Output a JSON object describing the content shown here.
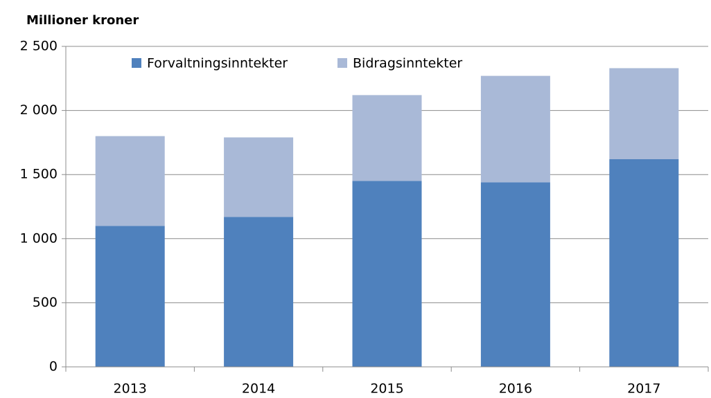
{
  "chart_data": {
    "type": "stacked_bar",
    "title": "Millioner kroner",
    "categories": [
      "2013",
      "2014",
      "2015",
      "2016",
      "2017"
    ],
    "series": [
      {
        "name": "Forvaltningsinntekter",
        "color": "#4f81bd",
        "values": [
          1100,
          1170,
          1450,
          1440,
          1620
        ]
      },
      {
        "name": "Bidragsinntekter",
        "color": "#a9b9d7",
        "values": [
          700,
          620,
          670,
          830,
          710
        ]
      }
    ],
    "ylim": [
      0,
      2500
    ],
    "yticks": [
      0,
      500,
      {
        "value": 1000,
        "label": "1 000"
      },
      {
        "value": 1500,
        "label": "1 500"
      },
      {
        "value": 2000,
        "label": "2 000"
      },
      {
        "value": 2500,
        "label": "2 500"
      }
    ],
    "grid": true,
    "legend": "top"
  }
}
